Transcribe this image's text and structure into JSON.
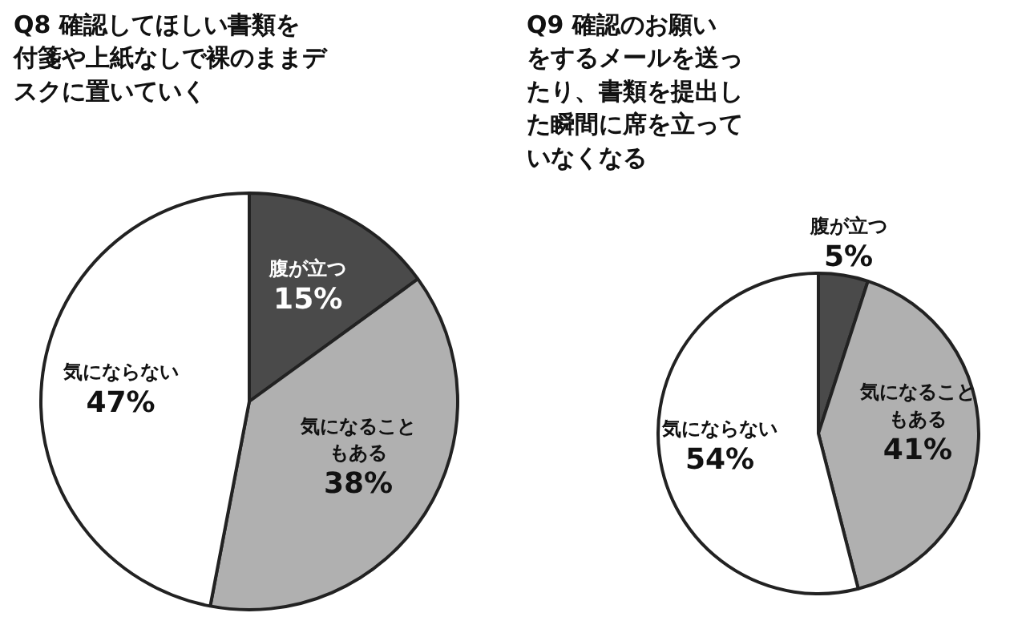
{
  "chart_data": [
    {
      "type": "pie",
      "title": "Q8 確認してほしい書類を付箋や上紙なしで裸のままデスクに置いていく",
      "categories": [
        "腹が立つ",
        "気になることもある",
        "気にならない"
      ],
      "values": [
        15,
        38,
        47
      ],
      "value_labels": [
        "15%",
        "38%",
        "47%"
      ],
      "colors": [
        "#4a4a4a",
        "#b0b0b0",
        "#ffffff"
      ]
    },
    {
      "type": "pie",
      "title": "Q9 確認のお願いをするメールを送ったり、書類を提出した瞬間に席を立っていなくなる",
      "categories": [
        "腹が立つ",
        "気になることもある",
        "気にならない"
      ],
      "values": [
        5,
        41,
        54
      ],
      "value_labels": [
        "5%",
        "41%",
        "54%"
      ],
      "colors": [
        "#4a4a4a",
        "#b0b0b0",
        "#ffffff"
      ]
    }
  ]
}
